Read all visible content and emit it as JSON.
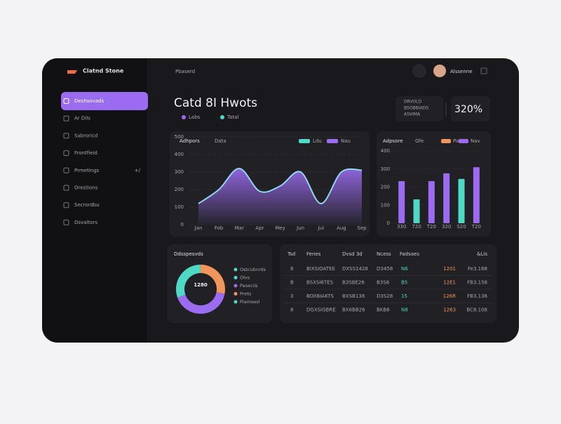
{
  "brand": "Clatnd Stone",
  "topbar": {
    "title": "Pbaserd",
    "user": "Alssenne"
  },
  "sidebar": [
    {
      "label": "Deshsovads"
    },
    {
      "label": "Ar Dils"
    },
    {
      "label": "Sabroricd"
    },
    {
      "label": "Frontfieid"
    },
    {
      "label": "Prmetings",
      "badge": "+/"
    },
    {
      "label": "Orestions"
    },
    {
      "label": "Secrordbu"
    },
    {
      "label": "Dsvaltors"
    }
  ],
  "header": {
    "title": "Catd 8I Hwots",
    "legend": [
      {
        "name": "Labs",
        "color": "#9b6cf0"
      },
      {
        "name": "Tatal",
        "color": "#4fd8c4"
      }
    ]
  },
  "stats": {
    "lines": [
      "DRVOLD",
      "BSOBBIADS",
      "ASVIMA"
    ],
    "value": "320%"
  },
  "area_chart": {
    "type": "area",
    "title": "Adhpors",
    "tag": "Data",
    "legend": [
      {
        "name": "Ldu",
        "color": "#4fd8c4"
      },
      {
        "name": "Nau",
        "color": "#9b6cf0"
      }
    ],
    "categories": [
      "Jan",
      "Fob",
      "Mar",
      "Apr",
      "Mey",
      "Jun",
      "Jul",
      "Aug",
      "Sep"
    ],
    "values": [
      120,
      200,
      320,
      190,
      220,
      300,
      120,
      300,
      310
    ],
    "color": "#9b6cf0",
    "line_color": "#8fd8f0",
    "ylim": [
      0,
      500
    ],
    "yticks": [
      0,
      100,
      200,
      300,
      400,
      500
    ],
    "grid": true
  },
  "bar_chart": {
    "type": "bar",
    "title": "Adpsore",
    "tag": "Ofe",
    "legend": [
      {
        "name": "Pat",
        "color": "#f0965a"
      },
      {
        "name": "Nav",
        "color": "#9b6cf0"
      }
    ],
    "categories": [
      "330",
      "720",
      "T20",
      "320",
      "S20",
      "T20"
    ],
    "values": [
      233,
      132,
      233,
      276,
      245,
      310
    ],
    "colors": [
      "#9b6cf0",
      "#4fd8c4",
      "#9b6cf0",
      "#9b6cf0",
      "#4fd8c4",
      "#9b6cf0"
    ],
    "ylim": [
      0,
      400
    ],
    "yticks": [
      0,
      100,
      200,
      300,
      400
    ],
    "grid": true
  },
  "donut": {
    "type": "pie",
    "title": "Ddsspesvds",
    "center": "1280",
    "values": [
      30.5,
      28,
      41.5
    ],
    "colors": [
      "#4fd8c4",
      "#f0965a",
      "#9b6cf0"
    ],
    "legend": [
      {
        "name": "Ostcubnrds",
        "color": "#4fd8c4"
      },
      {
        "name": "Olvs",
        "color": "#4fd8c4"
      },
      {
        "name": "Paseciis",
        "color": "#9b6cf0"
      },
      {
        "name": "Prets",
        "color": "#f0965a"
      },
      {
        "name": "Piamsesl",
        "color": "#4fd8c4"
      }
    ]
  },
  "table": {
    "headers": [
      "Tsd",
      "Fenes",
      "Dvsd 3d",
      "Ncess",
      "Fadsaes",
      "&Lis"
    ],
    "rows": [
      [
        "8",
        "BIXSIOATEE",
        "DXSS1428",
        "D3458",
        "N6",
        "1201",
        "Fe3.168"
      ],
      [
        "B",
        "BSXSI6TES",
        "B3SBE26",
        "B3S6",
        "B5",
        "12E1",
        "FB3.158"
      ],
      [
        "3",
        "BOXBIAKTS",
        "BXSB138",
        "D3S28",
        "15",
        "126R",
        "FB3.136"
      ],
      [
        "8",
        "DGXSIGBRE",
        "BX6BB26",
        "BKB6",
        "N8",
        "1263",
        "BC8.108"
      ]
    ]
  }
}
